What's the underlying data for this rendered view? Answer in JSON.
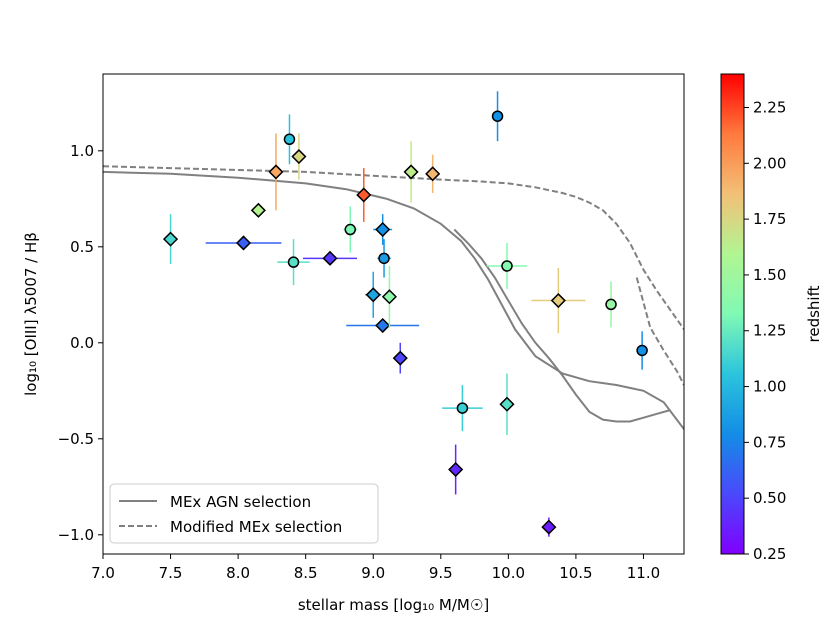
{
  "chart_data": {
    "type": "scatter",
    "xlabel": "stellar mass [log₁₀ M/M☉]",
    "ylabel": "log₁₀ [OIII] λ5007 / Hβ",
    "xlim": [
      7.0,
      11.3
    ],
    "ylim": [
      -1.1,
      1.4
    ],
    "xticks": [
      7.0,
      7.5,
      8.0,
      8.5,
      9.0,
      9.5,
      10.0,
      10.5,
      11.0
    ],
    "xtick_labels": [
      "7.0",
      "7.5",
      "8.0",
      "8.5",
      "9.0",
      "9.5",
      "10.0",
      "10.5",
      "11.0"
    ],
    "yticks": [
      -1.0,
      -0.5,
      0.0,
      0.5,
      1.0
    ],
    "ytick_labels": [
      "−1.0",
      "−0.5",
      "0.0",
      "0.5",
      "1.0"
    ],
    "colorbar": {
      "label": "redshift",
      "range": [
        0.25,
        2.4
      ],
      "ticks": [
        0.25,
        0.5,
        0.75,
        1.0,
        1.25,
        1.5,
        1.75,
        2.0,
        2.25
      ],
      "tick_labels": [
        "0.25",
        "0.50",
        "0.75",
        "1.00",
        "1.25",
        "1.50",
        "1.75",
        "2.00",
        "2.25"
      ]
    },
    "legend": {
      "placement": "lower-left",
      "entries": [
        {
          "label": "MEx AGN selection",
          "style": "solid"
        },
        {
          "label": "Modified MEx selection",
          "style": "dashed"
        }
      ]
    },
    "curves": [
      {
        "name": "MEx AGN selection upper",
        "style": "solid",
        "x": [
          7.0,
          7.5,
          8.0,
          8.5,
          8.8,
          9.1,
          9.3,
          9.5,
          9.65,
          9.75,
          9.85,
          9.95,
          10.05,
          10.2,
          10.4,
          10.6,
          10.8,
          11.0,
          11.15,
          11.3
        ],
        "y": [
          0.89,
          0.88,
          0.86,
          0.83,
          0.8,
          0.75,
          0.7,
          0.62,
          0.53,
          0.44,
          0.33,
          0.2,
          0.07,
          -0.07,
          -0.16,
          -0.2,
          -0.22,
          -0.25,
          -0.31,
          -0.45
        ]
      },
      {
        "name": "MEx AGN selection lower",
        "style": "solid",
        "x": [
          9.6,
          9.7,
          9.8,
          9.9,
          10.0,
          10.1,
          10.2,
          10.3,
          10.4,
          10.5,
          10.6,
          10.7,
          10.8,
          10.9,
          11.0,
          11.1,
          11.2
        ],
        "y": [
          0.59,
          0.52,
          0.44,
          0.34,
          0.22,
          0.1,
          0.0,
          -0.08,
          -0.17,
          -0.27,
          -0.36,
          -0.4,
          -0.41,
          -0.41,
          -0.39,
          -0.37,
          -0.35
        ]
      },
      {
        "name": "Modified MEx selection",
        "style": "dashed",
        "x": [
          7.0,
          7.5,
          8.0,
          8.5,
          9.0,
          9.5,
          9.8,
          10.0,
          10.2,
          10.4,
          10.5,
          10.6,
          10.7,
          10.8,
          10.9,
          11.0,
          11.1,
          11.2,
          11.3
        ],
        "y": [
          0.92,
          0.91,
          0.9,
          0.89,
          0.87,
          0.85,
          0.84,
          0.83,
          0.81,
          0.78,
          0.76,
          0.73,
          0.69,
          0.62,
          0.52,
          0.38,
          0.27,
          0.17,
          0.07
        ]
      },
      {
        "name": "Modified MEx selection lower",
        "style": "dashed",
        "x": [
          10.95,
          11.05,
          11.15,
          11.25,
          11.3
        ],
        "y": [
          0.34,
          0.08,
          -0.04,
          -0.15,
          -0.22
        ]
      }
    ],
    "series": [
      {
        "marker": "circle",
        "points": [
          {
            "x": 8.38,
            "y": 1.06,
            "xerr": 0.0,
            "yerr": 0.13,
            "z": 1.05
          },
          {
            "x": 8.41,
            "y": 0.42,
            "xerr": 0.12,
            "yerr": 0.12,
            "z": 1.2
          },
          {
            "x": 8.83,
            "y": 0.59,
            "xerr": 0.05,
            "yerr": 0.12,
            "z": 1.32
          },
          {
            "x": 9.08,
            "y": 0.44,
            "xerr": 0.05,
            "yerr": 0.1,
            "z": 0.85
          },
          {
            "x": 9.66,
            "y": -0.34,
            "xerr": 0.15,
            "yerr": 0.12,
            "z": 1.1
          },
          {
            "x": 9.92,
            "y": 1.18,
            "xerr": 0.0,
            "yerr": 0.13,
            "z": 0.8
          },
          {
            "x": 9.99,
            "y": 0.4,
            "xerr": 0.15,
            "yerr": 0.12,
            "z": 1.35
          },
          {
            "x": 10.76,
            "y": 0.2,
            "xerr": 0.0,
            "yerr": 0.12,
            "z": 1.45
          },
          {
            "x": 10.99,
            "y": -0.04,
            "xerr": 0.0,
            "yerr": 0.1,
            "z": 0.8
          }
        ]
      },
      {
        "marker": "diamond",
        "points": [
          {
            "x": 7.5,
            "y": 0.54,
            "xerr": 0.0,
            "yerr": 0.13,
            "z": 1.15
          },
          {
            "x": 8.04,
            "y": 0.52,
            "xerr": 0.28,
            "yerr": 0.0,
            "z": 0.6
          },
          {
            "x": 8.15,
            "y": 0.69,
            "xerr": 0.0,
            "yerr": 0.0,
            "z": 1.6
          },
          {
            "x": 8.28,
            "y": 0.89,
            "xerr": 0.0,
            "yerr": 0.2,
            "z": 1.95
          },
          {
            "x": 8.45,
            "y": 0.97,
            "xerr": 0.0,
            "yerr": 0.12,
            "z": 1.75
          },
          {
            "x": 8.68,
            "y": 0.44,
            "xerr": 0.2,
            "yerr": 0.0,
            "z": 0.45
          },
          {
            "x": 8.93,
            "y": 0.77,
            "xerr": 0.0,
            "yerr": 0.14,
            "z": 2.2
          },
          {
            "x": 9.0,
            "y": 0.25,
            "xerr": 0.06,
            "yerr": 0.12,
            "z": 0.9
          },
          {
            "x": 9.07,
            "y": 0.59,
            "xerr": 0.07,
            "yerr": 0.08,
            "z": 0.8
          },
          {
            "x": 9.07,
            "y": 0.09,
            "xerr": 0.27,
            "yerr": 0.0,
            "z": 0.7
          },
          {
            "x": 9.12,
            "y": 0.24,
            "xerr": 0.05,
            "yerr": 0.16,
            "z": 1.4
          },
          {
            "x": 9.2,
            "y": -0.08,
            "xerr": 0.0,
            "yerr": 0.08,
            "z": 0.5
          },
          {
            "x": 9.28,
            "y": 0.89,
            "xerr": 0.0,
            "yerr": 0.16,
            "z": 1.65
          },
          {
            "x": 9.44,
            "y": 0.88,
            "xerr": 0.0,
            "yerr": 0.1,
            "z": 1.9
          },
          {
            "x": 9.61,
            "y": -0.66,
            "xerr": 0.0,
            "yerr": 0.13,
            "z": 0.4
          },
          {
            "x": 9.99,
            "y": -0.32,
            "xerr": 0.0,
            "yerr": 0.16,
            "z": 1.2
          },
          {
            "x": 10.3,
            "y": -0.96,
            "xerr": 0.0,
            "yerr": 0.05,
            "z": 0.35
          },
          {
            "x": 10.37,
            "y": 0.22,
            "xerr": 0.2,
            "yerr": 0.17,
            "z": 1.8
          }
        ]
      }
    ]
  }
}
